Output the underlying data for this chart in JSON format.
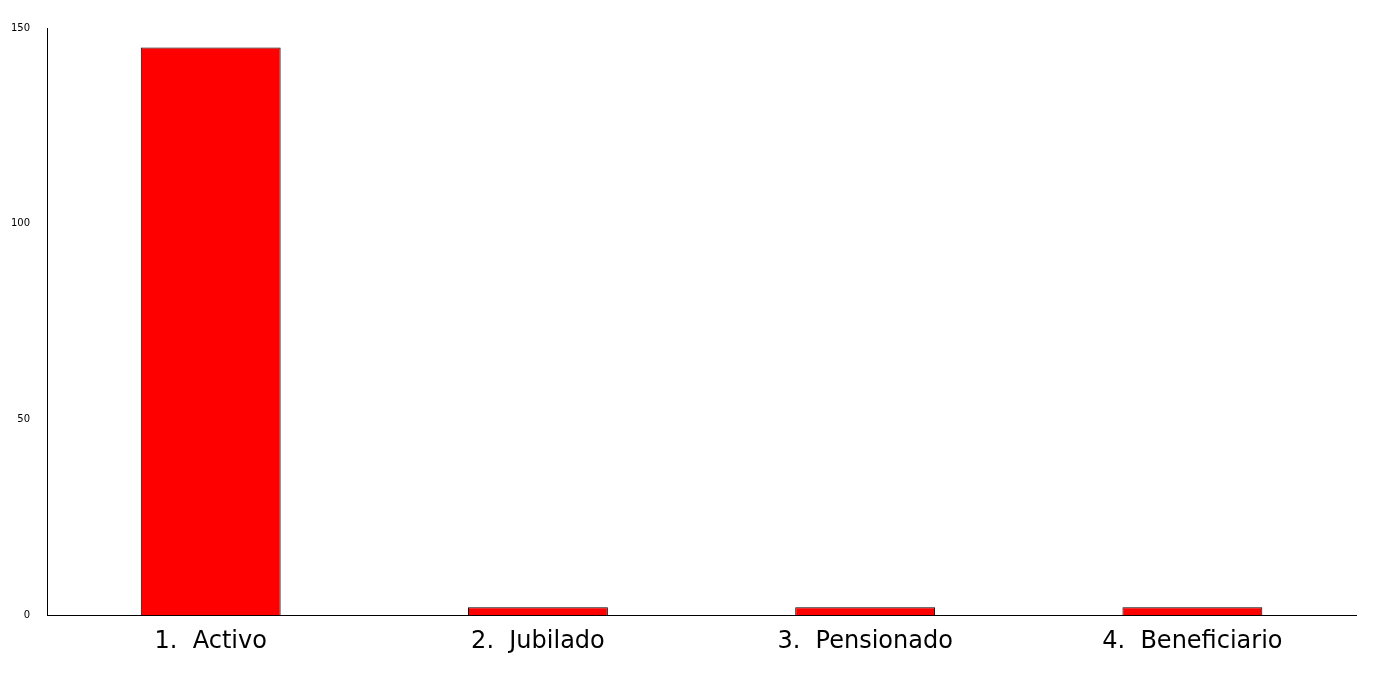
{
  "chart_data": {
    "type": "bar",
    "categories": [
      "1.  Activo",
      "2.  Jubilado",
      "3.  Pensionado",
      "4.  Beneficiario"
    ],
    "values": [
      145,
      2,
      2,
      2
    ],
    "color": "#ff0000",
    "ylim": [
      0,
      150
    ],
    "yticks": [
      0,
      50,
      100,
      150
    ],
    "grid": false,
    "legend": false
  }
}
